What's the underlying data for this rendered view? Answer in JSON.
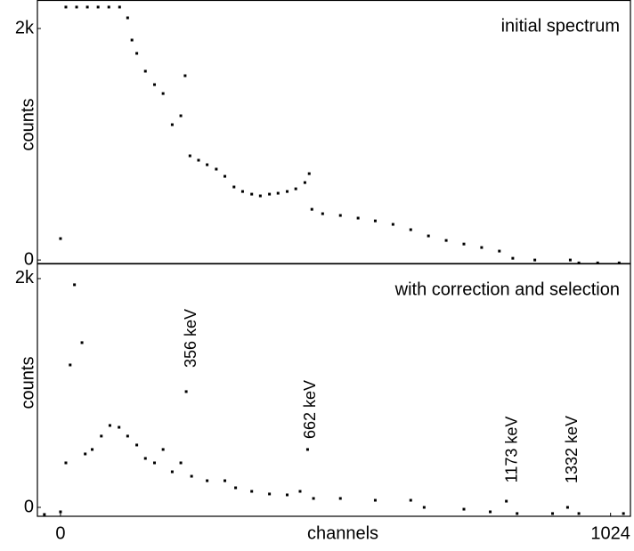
{
  "chart_data": [
    {
      "type": "scatter",
      "title": "initial spectrum",
      "ylabel": "counts",
      "color": "#000000",
      "x": [
        0,
        10,
        30,
        50,
        70,
        90,
        110,
        125,
        133,
        142,
        158,
        175,
        191,
        208,
        224,
        232,
        241,
        257,
        273,
        290,
        306,
        323,
        339,
        356,
        372,
        389,
        405,
        422,
        438,
        455,
        463,
        468,
        488,
        521,
        554,
        586,
        619,
        652,
        685,
        718,
        751,
        784,
        817,
        842,
        883,
        949,
        965,
        1000,
        1040
      ],
      "values": [
        185,
        2185,
        2185,
        2185,
        2185,
        2185,
        2185,
        2092,
        1900,
        1785,
        1631,
        1515,
        1438,
        1169,
        1246,
        1592,
        900,
        862,
        823,
        785,
        723,
        631,
        592,
        569,
        554,
        569,
        577,
        592,
        615,
        669,
        746,
        438,
        400,
        385,
        362,
        338,
        308,
        262,
        208,
        169,
        138,
        108,
        77,
        15,
        0,
        0,
        -25,
        -25,
        -25
      ],
      "xlim": [
        -43,
        1061
      ],
      "ylim": [
        -30,
        2246
      ],
      "yticks": [
        0,
        {
          "value": 2000,
          "label": "2k"
        }
      ]
    },
    {
      "type": "scatter",
      "title": "with correction and selection",
      "ylabel": "counts",
      "xlabel": "channels",
      "color": "#000000",
      "x": [
        -30,
        0,
        10,
        18,
        26,
        40,
        46,
        59,
        76,
        92,
        109,
        125,
        142,
        158,
        175,
        191,
        208,
        224,
        234,
        244,
        273,
        306,
        326,
        356,
        389,
        422,
        446,
        460,
        471,
        521,
        586,
        652,
        677,
        751,
        800,
        830,
        850,
        916,
        944,
        965,
        1048
      ],
      "values": [
        -62,
        -39,
        389,
        1245,
        1946,
        1440,
        467,
        506,
        623,
        716,
        700,
        623,
        545,
        428,
        389,
        506,
        311,
        389,
        1012,
        272,
        233,
        233,
        171,
        140,
        117,
        109,
        140,
        506,
        78,
        78,
        62,
        62,
        0,
        -16,
        -39,
        54,
        -54,
        -54,
        0,
        -54,
        -54
      ],
      "annotations": [
        "356 keV",
        "662 keV",
        "1173 keV",
        "1332 keV"
      ],
      "xlim": [
        -43,
        1061
      ],
      "ylim": [
        -78,
        2132
      ],
      "xticks": [
        0,
        1024
      ],
      "yticks": [
        0,
        {
          "value": 2000,
          "label": "2k"
        }
      ]
    }
  ]
}
